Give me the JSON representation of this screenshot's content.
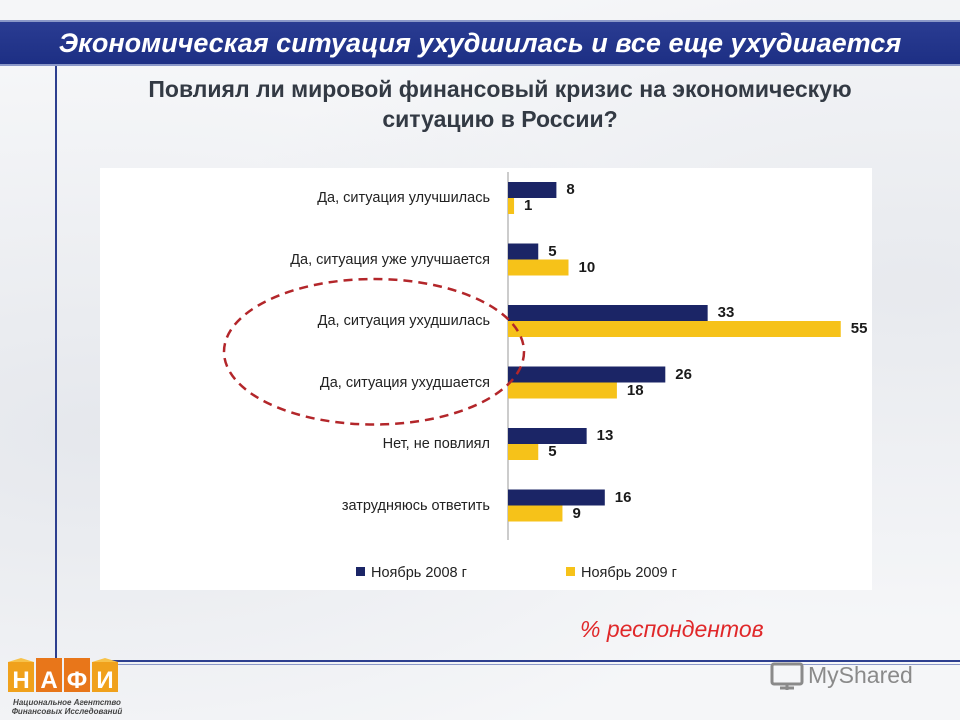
{
  "header": {
    "title": "Экономическая ситуация ухудшилась и все еще ухудшается"
  },
  "question": {
    "line1": "Повлиял ли мировой финансовый кризис на экономическую",
    "line2": "ситуацию в России?"
  },
  "chart_data": {
    "type": "bar",
    "orientation": "horizontal",
    "categories": [
      "Да, ситуация улучшилась",
      "Да, ситуация уже улучшается",
      "Да, ситуация ухудшилась",
      "Да, ситуация ухудшается",
      "Нет, не повлиял",
      "затрудняюсь ответить"
    ],
    "series": [
      {
        "name": "Ноябрь 2008 г",
        "color": "#1b2566",
        "values": [
          8,
          5,
          33,
          26,
          13,
          16
        ]
      },
      {
        "name": "Ноябрь 2009 г",
        "color": "#f6c219",
        "values": [
          1,
          10,
          55,
          18,
          5,
          9
        ]
      }
    ],
    "xlim": [
      0,
      60
    ],
    "legend_position": "bottom",
    "grid": false,
    "highlight": {
      "style": "dashed-ellipse",
      "color": "#b3262a",
      "categories": [
        "Да, ситуация ухудшилась",
        "Да, ситуация ухудшается"
      ]
    }
  },
  "note": "% респондентов",
  "logo": {
    "letters": "НАФИ",
    "caption_line1": "Национальное Агентство",
    "caption_line2": "Финансовых Исследований"
  },
  "watermark": "MyShared"
}
